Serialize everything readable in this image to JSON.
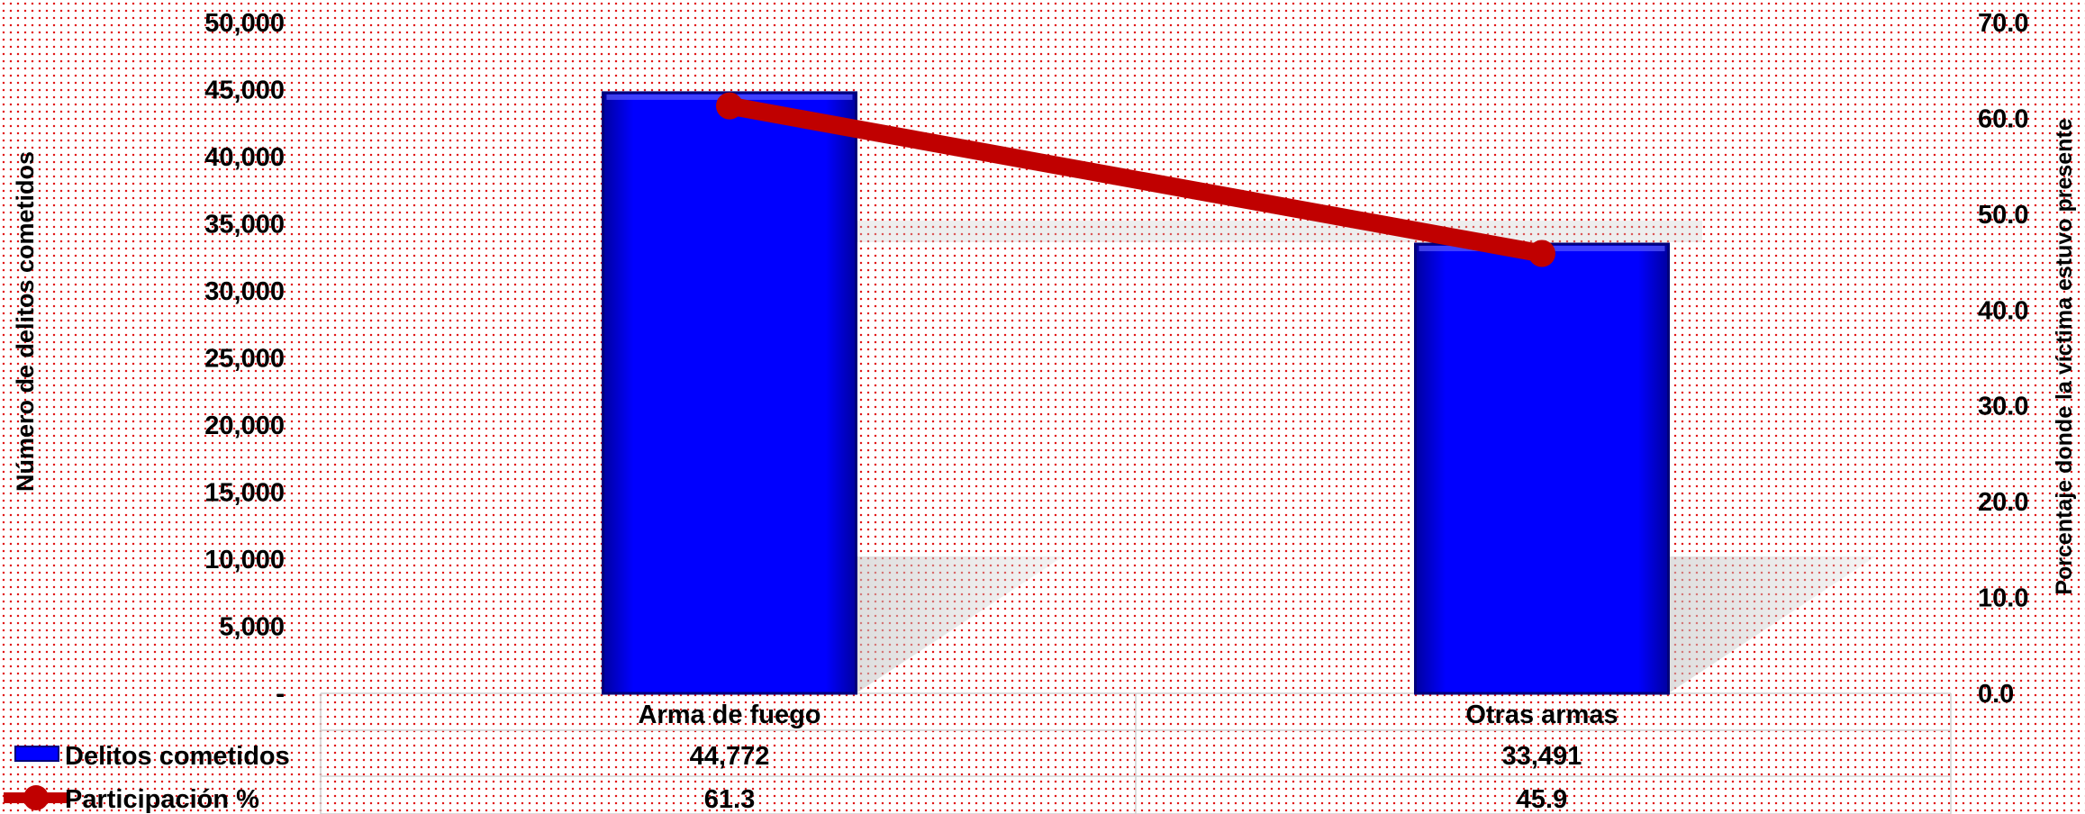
{
  "chart_data": {
    "type": "bar",
    "categories": [
      "Arma de fuego",
      "Otras armas"
    ],
    "series": [
      {
        "name": "Delitos cometidos",
        "type": "bar",
        "axis": "left",
        "values": [
          44772,
          33491
        ],
        "labels": [
          "44,772",
          "33,491"
        ],
        "color": "#0000ff"
      },
      {
        "name": "Participación %",
        "type": "line",
        "axis": "right",
        "values": [
          61.3,
          45.9
        ],
        "labels": [
          "61.3",
          "45.9"
        ],
        "color": "#c00000"
      }
    ],
    "ylabel": "Número de delitos cometidos",
    "y2label": "Porcentaje donde la víctima estuvo presente",
    "ylim": [
      0,
      50000
    ],
    "y2lim": [
      0,
      70
    ],
    "yticks": [
      0,
      5000,
      10000,
      15000,
      20000,
      25000,
      30000,
      35000,
      40000,
      45000,
      50000
    ],
    "ytick_labels": [
      "-",
      "5,000",
      "10,000",
      "15,000",
      "20,000",
      "25,000",
      "30,000",
      "35,000",
      "40,000",
      "45,000",
      "50,000"
    ],
    "y2ticks": [
      0,
      10,
      20,
      30,
      40,
      50,
      60,
      70
    ],
    "y2tick_labels": [
      "0.0",
      "10.0",
      "20.0",
      "30.0",
      "40.0",
      "50.0",
      "60.0",
      "70.0"
    ],
    "legend_placement": "data-table-bottom-left",
    "grid": false
  }
}
